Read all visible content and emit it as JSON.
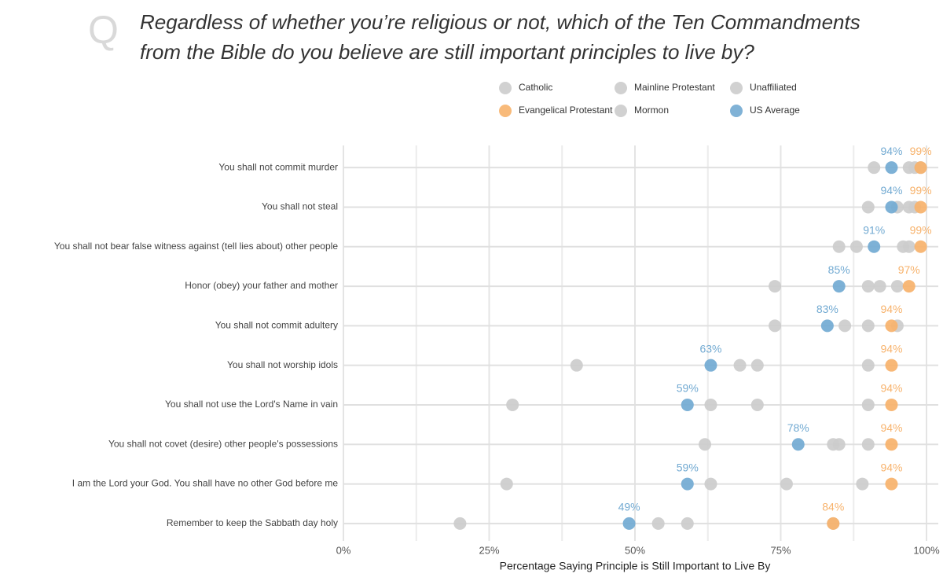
{
  "chart_data": {
    "type": "dot",
    "title": [
      "Regardless of whether you’re religious or not, which of the Ten Commandments",
      "from the Bible do you believe are still important principles to live by?"
    ],
    "title_mark": "Q",
    "xlabel": "Percentage Saying Principle is Still Important to Live By",
    "categories": [
      "You shall not commit murder",
      "You shall not steal",
      "You shall not bear false witness against (tell lies about) other people",
      "Honor (obey) your father and mother",
      "You shall not commit adultery",
      "You shall not worship idols",
      "You shall not use the Lord's Name in vain",
      "You shall not covet (desire) other people's possessions",
      "I am the Lord your God. You shall have no other God before me",
      "Remember to keep the Sabbath day holy"
    ],
    "xlim": [
      0,
      102
    ],
    "xticks": [
      {
        "value": 0,
        "label": "0%"
      },
      {
        "value": 25,
        "label": "25%"
      },
      {
        "value": 50,
        "label": "50%"
      },
      {
        "value": 75,
        "label": "75%"
      },
      {
        "value": 100,
        "label": "100%"
      }
    ],
    "xminor": [
      12.5,
      37.5,
      62.5,
      87.5
    ],
    "grid": true,
    "series": [
      {
        "name": "Catholic",
        "color": "#cccccc",
        "values": [
          97,
          95,
          88,
          90,
          86,
          68,
          63,
          84,
          63,
          54
        ]
      },
      {
        "name": "Evangelical Protestant",
        "color": "#f7b26b",
        "values": [
          99,
          99,
          99,
          97,
          94,
          94,
          94,
          94,
          94,
          84
        ],
        "value_labels": [
          "99%",
          "99%",
          "99%",
          "97%",
          "94%",
          "94%",
          "94%",
          "94%",
          "94%",
          "84%"
        ]
      },
      {
        "name": "Mainline Protestant",
        "color": "#cccccc",
        "values": [
          98,
          97,
          96,
          92,
          90,
          71,
          71,
          85,
          76,
          59
        ]
      },
      {
        "name": "Mormon",
        "color": "#cccccc",
        "values": [
          99,
          98,
          97,
          95,
          95,
          90,
          90,
          90,
          89,
          84
        ]
      },
      {
        "name": "Unaffiliated",
        "color": "#cccccc",
        "values": [
          91,
          90,
          85,
          74,
          74,
          40,
          29,
          62,
          28,
          20
        ]
      },
      {
        "name": "US Average",
        "color": "#72aad2",
        "values": [
          94,
          94,
          91,
          85,
          83,
          63,
          59,
          78,
          59,
          49
        ],
        "value_labels": [
          "94%",
          "94%",
          "91%",
          "85%",
          "83%",
          "63%",
          "59%",
          "78%",
          "59%",
          "49%"
        ]
      }
    ]
  }
}
